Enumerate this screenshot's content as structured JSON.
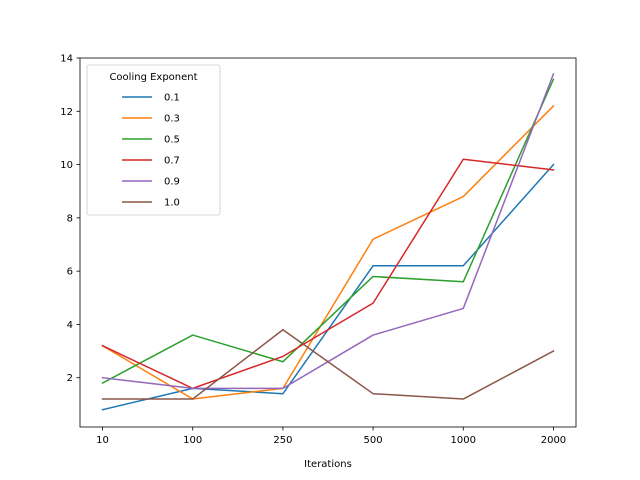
{
  "chart_data": {
    "type": "line",
    "title": "",
    "xlabel": "Iterations",
    "ylabel": "",
    "categories": [
      "10",
      "100",
      "250",
      "500",
      "1000",
      "2000"
    ],
    "ylim": [
      0.15,
      14
    ],
    "yticks": [
      2,
      4,
      6,
      8,
      10,
      12,
      14
    ],
    "grid": false,
    "legend": {
      "title": "Cooling Exponent",
      "placement": "top-left"
    },
    "series": [
      {
        "name": "0.1",
        "color": "#1f77b4",
        "values": [
          0.8,
          1.6,
          1.4,
          6.2,
          6.2,
          10.0
        ]
      },
      {
        "name": "0.3",
        "color": "#ff7f0e",
        "values": [
          3.2,
          1.2,
          1.6,
          7.2,
          8.8,
          12.2
        ]
      },
      {
        "name": "0.5",
        "color": "#2ca02c",
        "values": [
          1.8,
          3.6,
          2.6,
          5.8,
          5.6,
          13.2
        ]
      },
      {
        "name": "0.7",
        "color": "#d62728",
        "values": [
          3.2,
          1.6,
          2.8,
          4.8,
          10.2,
          9.8
        ]
      },
      {
        "name": "0.9",
        "color": "#9467bd",
        "values": [
          2.0,
          1.6,
          1.6,
          3.6,
          4.6,
          13.4
        ]
      },
      {
        "name": "1.0",
        "color": "#8c564b",
        "values": [
          1.2,
          1.2,
          3.8,
          1.4,
          1.2,
          3.0
        ]
      }
    ]
  }
}
